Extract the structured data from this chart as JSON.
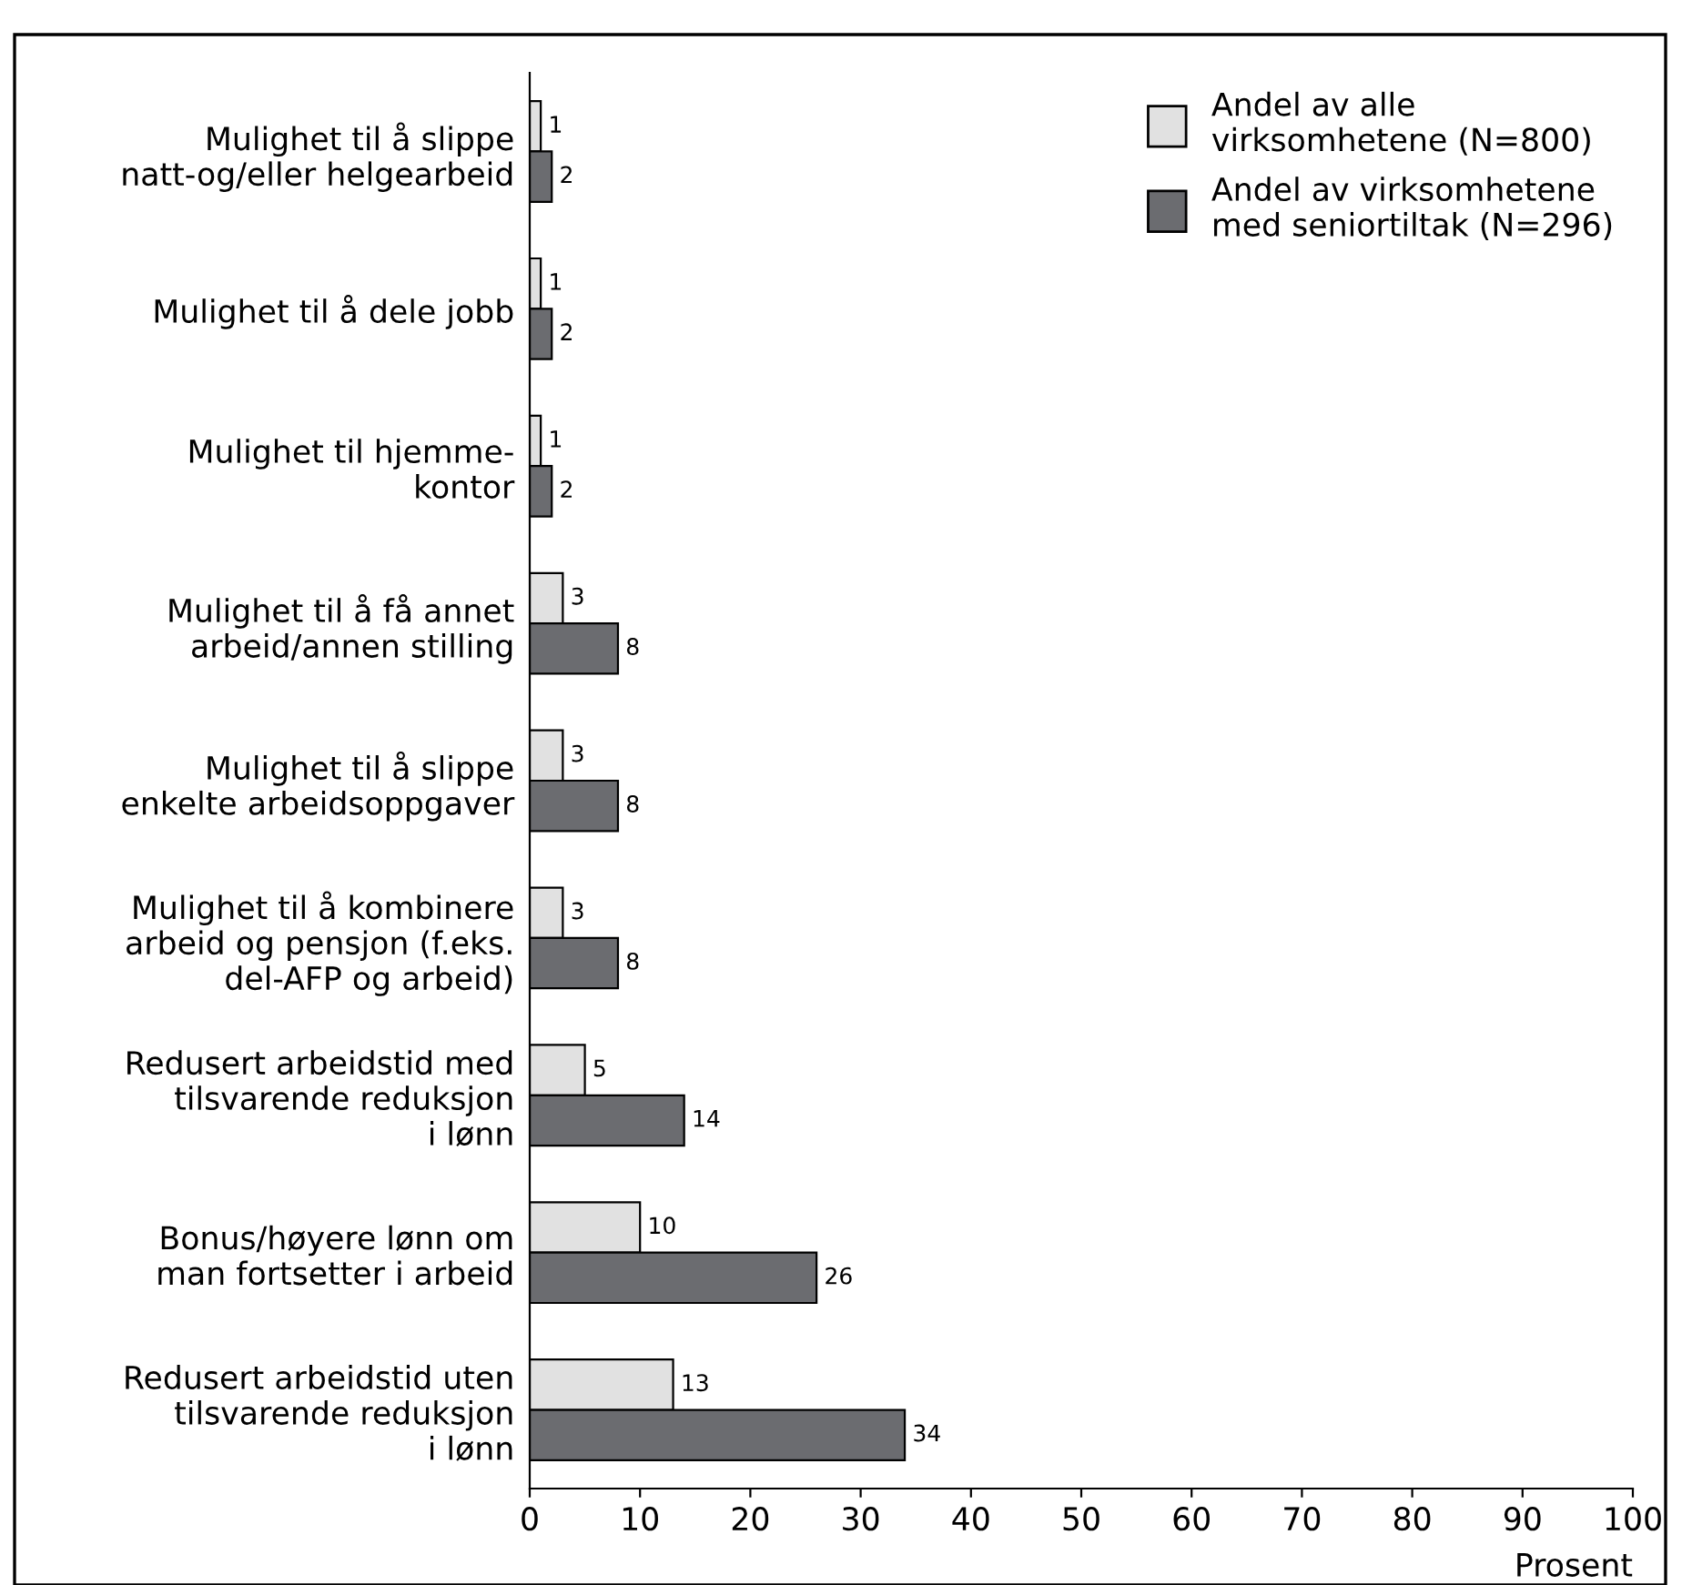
{
  "chart_data": {
    "type": "bar",
    "orientation": "horizontal",
    "xlabel": "Prosent",
    "categories": [
      "Mulighet til å slippe\nnatt-og/eller helgearbeid",
      "Mulighet til å dele jobb",
      "Mulighet til hjemme-\nkontor",
      "Mulighet til å få annet\narbeid/annen stilling",
      "Mulighet til å slippe\nenkelte arbeidsoppgaver",
      "Mulighet til å kombinere\narbeid og pensjon (f.eks.\ndel-AFP og arbeid)",
      "Redusert arbeidstid med\ntilsvarende reduksjon\ni lønn",
      "Bonus/høyere lønn om\nman fortsetter i arbeid",
      "Redusert arbeidstid uten\ntilsvarende reduksjon\ni lønn"
    ],
    "series": [
      {
        "name": "Andel av alle\nvirksomhetene (N=800)",
        "color": "#e1e1e1",
        "values": [
          1,
          1,
          1,
          3,
          3,
          3,
          5,
          10,
          13
        ]
      },
      {
        "name": "Andel av virksomhetene\nmed seniortiltak (N=296)",
        "color": "#6b6c70",
        "values": [
          2,
          2,
          2,
          8,
          8,
          8,
          14,
          26,
          34
        ]
      }
    ],
    "xlim": [
      0,
      100
    ],
    "xticks": [
      0,
      10,
      20,
      30,
      40,
      50,
      60,
      70,
      80,
      90,
      100
    ],
    "data_labels": true,
    "grid": false,
    "legend": "top right"
  }
}
